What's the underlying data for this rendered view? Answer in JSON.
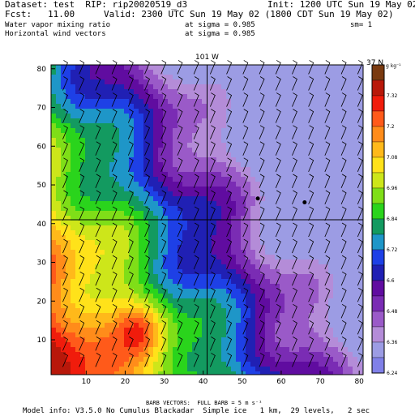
{
  "header": {
    "dataset": "Dataset: test  RIP: rip20020519_d3",
    "init": "Init: 1200 UTC Sun 19 May 02",
    "fcst": "Fcst:   11.00",
    "valid": "Valid: 2300 UTC Sun 19 May 02 (1800 CDT Sun 19 May 02)",
    "field1": "Water vapor mixing ratio",
    "sigma1": "at sigma = 0.985",
    "sm": "sm= 1",
    "field2": "Horizontal wind vectors",
    "sigma2": "at sigma = 0.985"
  },
  "footer": {
    "barb": "BARB VECTORS:  FULL BARB = 5 m s⁻¹",
    "model": "Model info: V3.5.0 No Cumulus Blackadar  Simple ice   1 km,  29 levels,   2 sec"
  },
  "chart_data": {
    "type": "heatmap",
    "title": "",
    "x_ticks": [
      "10",
      "20",
      "30",
      "40",
      "50",
      "60",
      "70",
      "80"
    ],
    "y_ticks": [
      "10",
      "20",
      "30",
      "40",
      "50",
      "60",
      "70",
      "80"
    ],
    "xlim": [
      1,
      81
    ],
    "ylim": [
      1,
      81
    ],
    "annotations": [
      {
        "text": "101 W",
        "x": 41
      },
      {
        "text": "37 N",
        "y": 41
      }
    ],
    "colorbar": {
      "units": "g kg⁻¹",
      "labels": [
        "7.32",
        "7.2",
        "7.08",
        "6.96",
        "6.84",
        "6.72",
        "6.6",
        "6.48",
        "6.36",
        "6.24"
      ],
      "colors": [
        "#7a3a10",
        "#b8180a",
        "#f01c0c",
        "#ff5a1a",
        "#ff8c1a",
        "#ffb91a",
        "#ffe21a",
        "#cde61a",
        "#7fde18",
        "#2ad41c",
        "#139a60",
        "#1e96c8",
        "#1e40e6",
        "#2020b4",
        "#600ca0",
        "#7a2cb4",
        "#9a5ac8",
        "#b48cd8",
        "#9c9ce4",
        "#8080e8"
      ]
    },
    "stations": [
      {
        "x": 54,
        "y": 46.5
      },
      {
        "x": 66,
        "y": 45.5
      }
    ],
    "grid_lines": {
      "lat": 41,
      "lon": 41
    }
  }
}
